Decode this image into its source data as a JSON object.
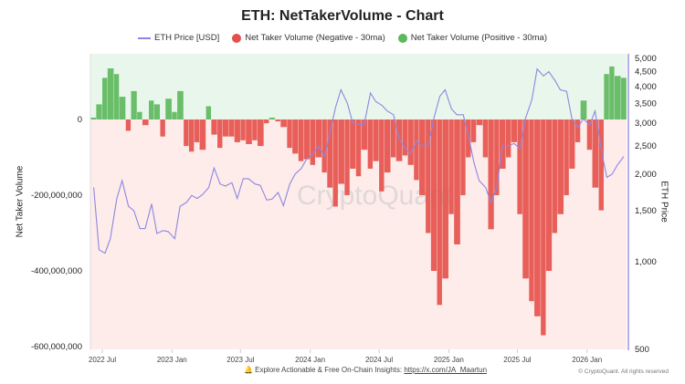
{
  "chart_data": {
    "type": "bar+line",
    "title": "ETH: NetTakerVolume - Chart",
    "legend": {
      "placement": "top",
      "items": [
        {
          "label": "ETH Price [USD]",
          "color": "#8e86e0",
          "marker": "line"
        },
        {
          "label": "Net Taker Volume (Negative - 30ma)",
          "color": "#e5504a",
          "marker": "dot"
        },
        {
          "label": "Net Taker Volume (Positive - 30ma)",
          "color": "#5cb85c",
          "marker": "dot"
        }
      ]
    },
    "ylabel_left": "Net Taker Volume",
    "ylabel_right": "ETH Price",
    "left_axis": {
      "ylim": [
        -600000000,
        173000000
      ],
      "ticks": [
        0,
        -200000000,
        -400000000,
        -600000000
      ],
      "tick_labels": [
        "0",
        "-200,000,000",
        "-400,000,000",
        "-600,000,000"
      ]
    },
    "right_axis": {
      "scale": "log",
      "ylim": [
        500,
        5200
      ],
      "ticks": [
        5000,
        4500,
        4000,
        3500,
        3000,
        2500,
        2000,
        1500,
        1000,
        500
      ],
      "tick_labels": [
        "5,000",
        "4,500",
        "4,000",
        "3,500",
        "3,000",
        "2,500",
        "2,000",
        "1,500",
        "1,000",
        "500"
      ]
    },
    "x_axis": {
      "tick_dates": [
        "2022-07-01",
        "2023-01-01",
        "2023-07-01",
        "2024-01-01",
        "2024-07-01",
        "2025-01-01",
        "2025-07-01",
        "2026-01-01"
      ],
      "tick_labels": [
        "2022 Jul",
        "2023 Jan",
        "2023 Jul",
        "2024 Jan",
        "2024 Jul",
        "2025 Jan",
        "2025 Jul",
        "2026 Jan"
      ]
    },
    "grid": false,
    "watermark": "CryptoQuant",
    "colors": {
      "positive": "#5cb85c",
      "negative": "#e5504a",
      "price": "#8e86e0",
      "bg_positive": "#e9f6ec",
      "bg_negative": "#fdecea"
    },
    "dates": [
      "2022-06-01",
      "2022-06-15",
      "2022-07-01",
      "2022-07-15",
      "2022-08-01",
      "2022-08-15",
      "2022-09-01",
      "2022-09-15",
      "2022-10-01",
      "2022-10-15",
      "2022-11-01",
      "2022-11-15",
      "2022-12-01",
      "2022-12-15",
      "2023-01-01",
      "2023-01-15",
      "2023-02-01",
      "2023-02-15",
      "2023-03-01",
      "2023-03-15",
      "2023-04-01",
      "2023-04-15",
      "2023-05-01",
      "2023-05-15",
      "2023-06-01",
      "2023-06-15",
      "2023-07-01",
      "2023-07-15",
      "2023-08-01",
      "2023-08-15",
      "2023-09-01",
      "2023-09-15",
      "2023-10-01",
      "2023-10-15",
      "2023-11-01",
      "2023-11-15",
      "2023-12-01",
      "2023-12-15",
      "2024-01-01",
      "2024-01-15",
      "2024-02-01",
      "2024-02-15",
      "2024-03-01",
      "2024-03-15",
      "2024-04-01",
      "2024-04-15",
      "2024-05-01",
      "2024-05-15",
      "2024-06-01",
      "2024-06-15",
      "2024-07-01",
      "2024-07-15",
      "2024-08-01",
      "2024-08-15",
      "2024-09-01",
      "2024-09-15",
      "2024-10-01",
      "2024-10-15",
      "2024-11-01",
      "2024-11-15",
      "2024-12-01",
      "2024-12-15",
      "2025-01-01",
      "2025-01-15",
      "2025-02-01",
      "2025-02-15",
      "2025-03-01",
      "2025-03-15",
      "2025-04-01",
      "2025-04-15",
      "2025-05-01",
      "2025-05-15",
      "2025-06-01",
      "2025-06-15",
      "2025-07-01",
      "2025-07-15",
      "2025-08-01",
      "2025-08-15",
      "2025-09-01",
      "2025-09-15",
      "2025-10-01",
      "2025-10-15",
      "2025-11-01",
      "2025-11-15",
      "2025-12-01",
      "2025-12-15",
      "2026-01-01",
      "2026-01-15",
      "2026-02-01",
      "2026-02-15",
      "2026-03-01",
      "2026-03-15",
      "2026-04-01"
    ],
    "series": [
      {
        "name": "ETH Price [USD]",
        "axis": "right",
        "values": [
          1800,
          1100,
          1070,
          1200,
          1650,
          1900,
          1550,
          1500,
          1300,
          1300,
          1580,
          1250,
          1280,
          1270,
          1200,
          1550,
          1600,
          1690,
          1650,
          1700,
          1800,
          2100,
          1850,
          1820,
          1870,
          1650,
          1930,
          1930,
          1850,
          1830,
          1630,
          1640,
          1730,
          1560,
          1850,
          2000,
          2090,
          2250,
          2350,
          2500,
          2300,
          2800,
          3400,
          3900,
          3500,
          3000,
          2970,
          2950,
          3800,
          3550,
          3450,
          3300,
          3200,
          2650,
          2450,
          2350,
          2600,
          2500,
          2500,
          3100,
          3700,
          3900,
          3350,
          3200,
          3200,
          2700,
          2200,
          1900,
          1800,
          1600,
          1800,
          2500,
          2500,
          2550,
          2450,
          3100,
          3600,
          4600,
          4350,
          4500,
          4200,
          3900,
          3850,
          3100,
          2900,
          3100,
          2950,
          3300,
          2400,
          1950,
          2000,
          2150,
          2300
        ]
      },
      {
        "name": "Net Taker Volume",
        "axis": "left",
        "unit": "USD",
        "values": [
          5000000,
          40000000,
          110000000,
          135000000,
          120000000,
          60000000,
          -30000000,
          75000000,
          20000000,
          -15000000,
          50000000,
          40000000,
          -45000000,
          55000000,
          20000000,
          75000000,
          -70000000,
          -85000000,
          -60000000,
          -80000000,
          35000000,
          -40000000,
          -75000000,
          -45000000,
          -45000000,
          -60000000,
          -55000000,
          -65000000,
          -55000000,
          -70000000,
          -10000000,
          5000000,
          -5000000,
          -20000000,
          -75000000,
          -90000000,
          -110000000,
          -105000000,
          -120000000,
          -100000000,
          -140000000,
          -180000000,
          -230000000,
          -170000000,
          -200000000,
          -130000000,
          -150000000,
          -80000000,
          -130000000,
          -110000000,
          -190000000,
          -140000000,
          -100000000,
          -110000000,
          -95000000,
          -120000000,
          -160000000,
          -200000000,
          -300000000,
          -400000000,
          -490000000,
          -420000000,
          -250000000,
          -330000000,
          -200000000,
          -100000000,
          -60000000,
          -15000000,
          -100000000,
          -290000000,
          -200000000,
          -130000000,
          -100000000,
          -60000000,
          -250000000,
          -420000000,
          -480000000,
          -520000000,
          -570000000,
          -400000000,
          -300000000,
          -250000000,
          -200000000,
          -130000000,
          -60000000,
          50000000,
          -80000000,
          -180000000,
          -240000000,
          120000000,
          140000000,
          115000000,
          110000000
        ]
      }
    ]
  },
  "footer": {
    "text": "Explore Actionable & Free On-Chain Insights: ",
    "link": "https://x.com/JA_Maartun",
    "copyright": "© CryptoQuant. All rights reserved",
    "icon": "bell-icon"
  }
}
